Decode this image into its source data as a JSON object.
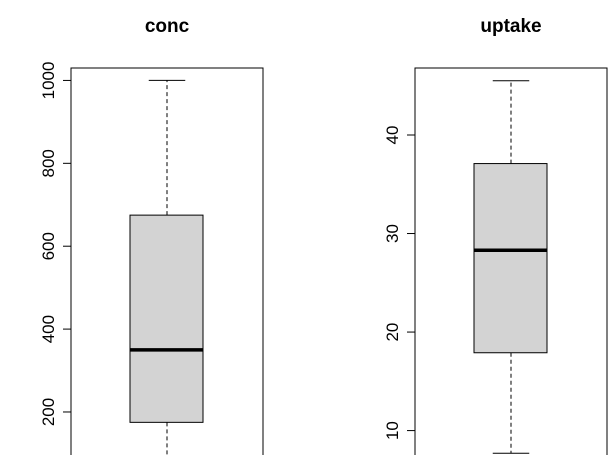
{
  "chart_data": [
    {
      "type": "box",
      "title": "conc",
      "ylim": [
        60,
        1030
      ],
      "yticks": [
        200,
        400,
        600,
        800,
        1000
      ],
      "ytick_labels": [
        "200",
        "400",
        "600",
        "800",
        "1000"
      ],
      "stats": {
        "min": 95,
        "q1": 175,
        "median": 350,
        "q3": 675,
        "max": 1000
      },
      "box_fill": "#d3d3d3",
      "grid": false
    },
    {
      "type": "box",
      "title": "uptake",
      "ylim": [
        6,
        46.8
      ],
      "yticks": [
        10,
        20,
        30,
        40
      ],
      "ytick_labels": [
        "10",
        "20",
        "30",
        "40"
      ],
      "stats": {
        "min": 7.7,
        "q1": 17.9,
        "median": 28.3,
        "q3": 37.1,
        "max": 45.5
      },
      "box_fill": "#d3d3d3",
      "grid": false
    }
  ]
}
